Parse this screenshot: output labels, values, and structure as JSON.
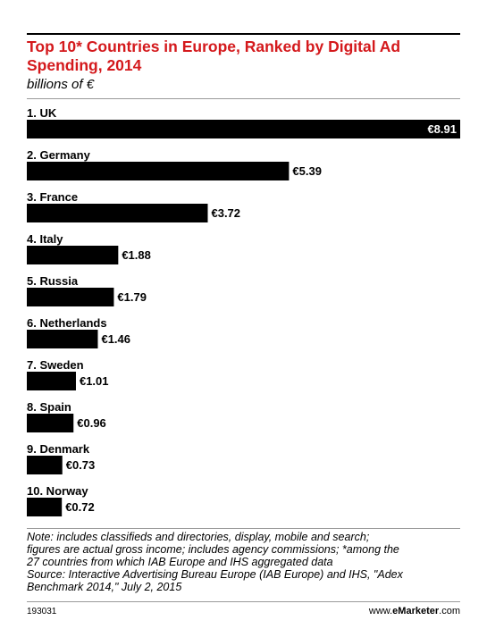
{
  "header": {
    "title": "Top 10* Countries in Europe, Ranked by Digital Ad Spending, 2014",
    "subtitle": "billions of €"
  },
  "chart_data": {
    "type": "bar",
    "orientation": "horizontal",
    "categories": [
      "1. UK",
      "2. Germany",
      "3. France",
      "4. Italy",
      "5. Russia",
      "6. Netherlands",
      "7. Sweden",
      "8. Spain",
      "9. Denmark",
      "10. Norway"
    ],
    "values": [
      8.91,
      5.39,
      3.72,
      1.88,
      1.79,
      1.46,
      1.01,
      0.96,
      0.73,
      0.72
    ],
    "value_labels": [
      "€8.91",
      "€5.39",
      "€3.72",
      "€1.88",
      "€1.79",
      "€1.46",
      "€1.01",
      "€0.96",
      "€0.73",
      "€0.72"
    ],
    "title": "Top 10* Countries in Europe, Ranked by Digital Ad Spending, 2014",
    "xlabel": "",
    "ylabel": "",
    "unit": "billions of €",
    "xlim": [
      0,
      8.91
    ],
    "bar_color": "#000000",
    "grid": false,
    "legend": "none"
  },
  "footer": {
    "note_line1": "Note: includes classifieds and directories, display, mobile and search;",
    "note_line2": "figures are actual gross income; includes agency commissions; *among the",
    "note_line3": "27 countries from which IAB Europe and IHS aggregated data",
    "source_line1": "Source: Interactive Advertising Bureau Europe (IAB Europe) and IHS, \"Adex",
    "source_line2": "Benchmark 2014,\" July 2, 2015",
    "chart_id": "193031",
    "brand_prefix": "www.",
    "brand_name": "eMarketer",
    "brand_suffix": ".com"
  },
  "colors": {
    "title": "#d4191c",
    "bars": "#000000",
    "inside_label": "#ffffff"
  }
}
